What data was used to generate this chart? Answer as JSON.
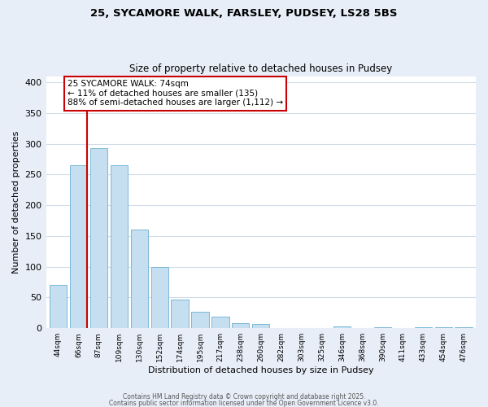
{
  "title1": "25, SYCAMORE WALK, FARSLEY, PUDSEY, LS28 5BS",
  "title2": "Size of property relative to detached houses in Pudsey",
  "xlabel": "Distribution of detached houses by size in Pudsey",
  "ylabel": "Number of detached properties",
  "bar_labels": [
    "44sqm",
    "66sqm",
    "87sqm",
    "109sqm",
    "130sqm",
    "152sqm",
    "174sqm",
    "195sqm",
    "217sqm",
    "238sqm",
    "260sqm",
    "282sqm",
    "303sqm",
    "325sqm",
    "346sqm",
    "368sqm",
    "390sqm",
    "411sqm",
    "433sqm",
    "454sqm",
    "476sqm"
  ],
  "bar_heights": [
    70,
    265,
    293,
    265,
    160,
    99,
    47,
    27,
    19,
    8,
    7,
    0,
    0,
    0,
    3,
    0,
    2,
    0,
    2,
    2,
    2
  ],
  "bar_color": "#c5dff0",
  "bar_edge_color": "#7ab8d8",
  "marker_line_color": "#cc0000",
  "annotation_text": "25 SYCAMORE WALK: 74sqm\n← 11% of detached houses are smaller (135)\n88% of semi-detached houses are larger (1,112) →",
  "annotation_box_edge": "#cc0000",
  "ylim": [
    0,
    410
  ],
  "yticks": [
    0,
    50,
    100,
    150,
    200,
    250,
    300,
    350,
    400
  ],
  "footer1": "Contains HM Land Registry data © Crown copyright and database right 2025.",
  "footer2": "Contains public sector information licensed under the Open Government Licence v3.0.",
  "bg_color": "#e8eef8",
  "plot_bg_color": "#ffffff",
  "grid_color": "#d0dce8"
}
